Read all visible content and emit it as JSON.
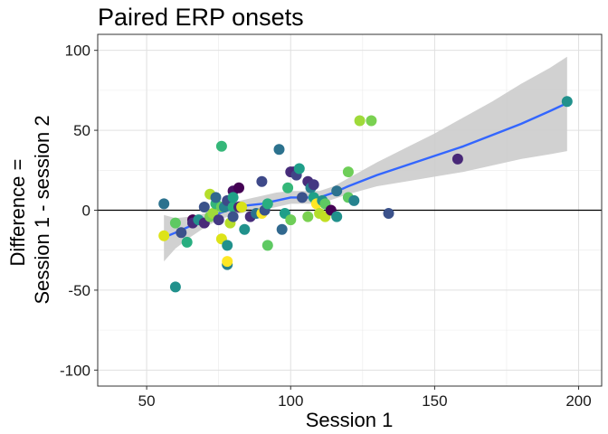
{
  "chart_data": {
    "type": "scatter",
    "title": "Paired ERP onsets",
    "xlabel": "Session 1",
    "ylabel_lines": [
      "Difference =",
      "Session 1 - session 2"
    ],
    "xlim": [
      33,
      208
    ],
    "ylim": [
      -110,
      110
    ],
    "x_ticks": [
      50,
      100,
      150,
      200
    ],
    "y_ticks": [
      -100,
      -50,
      0,
      50,
      100
    ],
    "x_tick_labels": [
      "50",
      "100",
      "150",
      "200"
    ],
    "y_tick_labels": [
      "-100",
      "-50",
      "0",
      "50",
      "100"
    ],
    "grid": true,
    "reference_line_y": 0,
    "smooth_color": "#3366FF",
    "band_color": "#cccccc",
    "points": [
      {
        "x": 56,
        "y": 4,
        "color": "#2c728e"
      },
      {
        "x": 56,
        "y": -16,
        "color": "#dde318"
      },
      {
        "x": 60,
        "y": -48,
        "color": "#21918c"
      },
      {
        "x": 60,
        "y": -8,
        "color": "#5ec962"
      },
      {
        "x": 62,
        "y": -14,
        "color": "#3b528b"
      },
      {
        "x": 64,
        "y": -20,
        "color": "#28ae80"
      },
      {
        "x": 66,
        "y": -6,
        "color": "#440154"
      },
      {
        "x": 66,
        "y": -8,
        "color": "#472d7b"
      },
      {
        "x": 68,
        "y": -6,
        "color": "#21918c"
      },
      {
        "x": 70,
        "y": 2,
        "color": "#3b528b"
      },
      {
        "x": 70,
        "y": -8,
        "color": "#482878"
      },
      {
        "x": 72,
        "y": 10,
        "color": "#b5de2b"
      },
      {
        "x": 72,
        "y": -4,
        "color": "#7ad151"
      },
      {
        "x": 73,
        "y": -2,
        "color": "#9fda3a"
      },
      {
        "x": 74,
        "y": 4,
        "color": "#35b779"
      },
      {
        "x": 74,
        "y": 8,
        "color": "#31688e"
      },
      {
        "x": 75,
        "y": -6,
        "color": "#443983"
      },
      {
        "x": 76,
        "y": 40,
        "color": "#35b779"
      },
      {
        "x": 76,
        "y": 2,
        "color": "#6ece58"
      },
      {
        "x": 76,
        "y": -18,
        "color": "#dde318"
      },
      {
        "x": 77,
        "y": 2,
        "color": "#26828e"
      },
      {
        "x": 78,
        "y": -34,
        "color": "#26828e"
      },
      {
        "x": 78,
        "y": -22,
        "color": "#21918c"
      },
      {
        "x": 78,
        "y": -32,
        "color": "#fde725"
      },
      {
        "x": 78,
        "y": 6,
        "color": "#3e4989"
      },
      {
        "x": 79,
        "y": -8,
        "color": "#b5de2b"
      },
      {
        "x": 80,
        "y": 12,
        "color": "#471063"
      },
      {
        "x": 80,
        "y": 2,
        "color": "#28ae80"
      },
      {
        "x": 80,
        "y": -4,
        "color": "#3b528b"
      },
      {
        "x": 80,
        "y": 8,
        "color": "#1fa187"
      },
      {
        "x": 82,
        "y": 14,
        "color": "#440154"
      },
      {
        "x": 82,
        "y": 2,
        "color": "#482878"
      },
      {
        "x": 83,
        "y": 2,
        "color": "#d8e219"
      },
      {
        "x": 84,
        "y": -12,
        "color": "#21918c"
      },
      {
        "x": 86,
        "y": -4,
        "color": "#472d7b"
      },
      {
        "x": 88,
        "y": -2,
        "color": "#2c728e"
      },
      {
        "x": 90,
        "y": 18,
        "color": "#3e4989"
      },
      {
        "x": 90,
        "y": -2,
        "color": "#fde725"
      },
      {
        "x": 91,
        "y": 0,
        "color": "#3b528b"
      },
      {
        "x": 92,
        "y": -22,
        "color": "#5ec962"
      },
      {
        "x": 92,
        "y": 4,
        "color": "#28ae80"
      },
      {
        "x": 96,
        "y": 38,
        "color": "#2c728e"
      },
      {
        "x": 97,
        "y": -12,
        "color": "#31688e"
      },
      {
        "x": 98,
        "y": -2,
        "color": "#1f9e89"
      },
      {
        "x": 99,
        "y": 14,
        "color": "#35b779"
      },
      {
        "x": 100,
        "y": 24,
        "color": "#472d7b"
      },
      {
        "x": 100,
        "y": -6,
        "color": "#6ece58"
      },
      {
        "x": 101,
        "y": 24,
        "color": "#482878"
      },
      {
        "x": 102,
        "y": 22,
        "color": "#414487"
      },
      {
        "x": 103,
        "y": 26,
        "color": "#1f9e89"
      },
      {
        "x": 104,
        "y": 8,
        "color": "#3b528b"
      },
      {
        "x": 106,
        "y": 18,
        "color": "#472d7b"
      },
      {
        "x": 106,
        "y": -4,
        "color": "#7ad151"
      },
      {
        "x": 107,
        "y": 14,
        "color": "#26828e"
      },
      {
        "x": 108,
        "y": 16,
        "color": "#443983"
      },
      {
        "x": 108,
        "y": 8,
        "color": "#1fa187"
      },
      {
        "x": 109,
        "y": 4,
        "color": "#fde725"
      },
      {
        "x": 110,
        "y": -2,
        "color": "#b5de2b"
      },
      {
        "x": 111,
        "y": 6,
        "color": "#21918c"
      },
      {
        "x": 112,
        "y": 4,
        "color": "#5ec962"
      },
      {
        "x": 112,
        "y": -4,
        "color": "#c2df23"
      },
      {
        "x": 114,
        "y": 0,
        "color": "#440154"
      },
      {
        "x": 116,
        "y": 12,
        "color": "#2c728e"
      },
      {
        "x": 116,
        "y": -4,
        "color": "#21918c"
      },
      {
        "x": 120,
        "y": 24,
        "color": "#6ece58"
      },
      {
        "x": 120,
        "y": 8,
        "color": "#5ec962"
      },
      {
        "x": 122,
        "y": 6,
        "color": "#26828e"
      },
      {
        "x": 124,
        "y": 56,
        "color": "#9fda3a"
      },
      {
        "x": 128,
        "y": 56,
        "color": "#7ad151"
      },
      {
        "x": 134,
        "y": -2,
        "color": "#3b528b"
      },
      {
        "x": 158,
        "y": 32,
        "color": "#482878"
      },
      {
        "x": 196,
        "y": 68,
        "color": "#21918c"
      }
    ],
    "smooth": {
      "x": [
        56,
        60,
        65,
        70,
        75,
        80,
        85,
        90,
        95,
        100,
        105,
        110,
        115,
        120,
        130,
        140,
        150,
        160,
        170,
        180,
        190,
        196
      ],
      "y": [
        -17,
        -14,
        -10,
        -6,
        -2,
        1,
        3,
        4,
        6,
        8,
        8,
        8,
        11,
        15,
        22,
        28,
        34,
        40,
        47,
        54,
        62,
        67
      ],
      "lower": [
        -32,
        -24,
        -17,
        -11,
        -6,
        -3,
        -1,
        0,
        2,
        4,
        4,
        4,
        7,
        10,
        15,
        18,
        21,
        24,
        28,
        32,
        35,
        37
      ],
      "upper": [
        -3,
        -5,
        -4,
        -2,
        2,
        5,
        7,
        9,
        11,
        12,
        12,
        12,
        15,
        20,
        30,
        39,
        48,
        58,
        68,
        79,
        89,
        96
      ]
    }
  }
}
